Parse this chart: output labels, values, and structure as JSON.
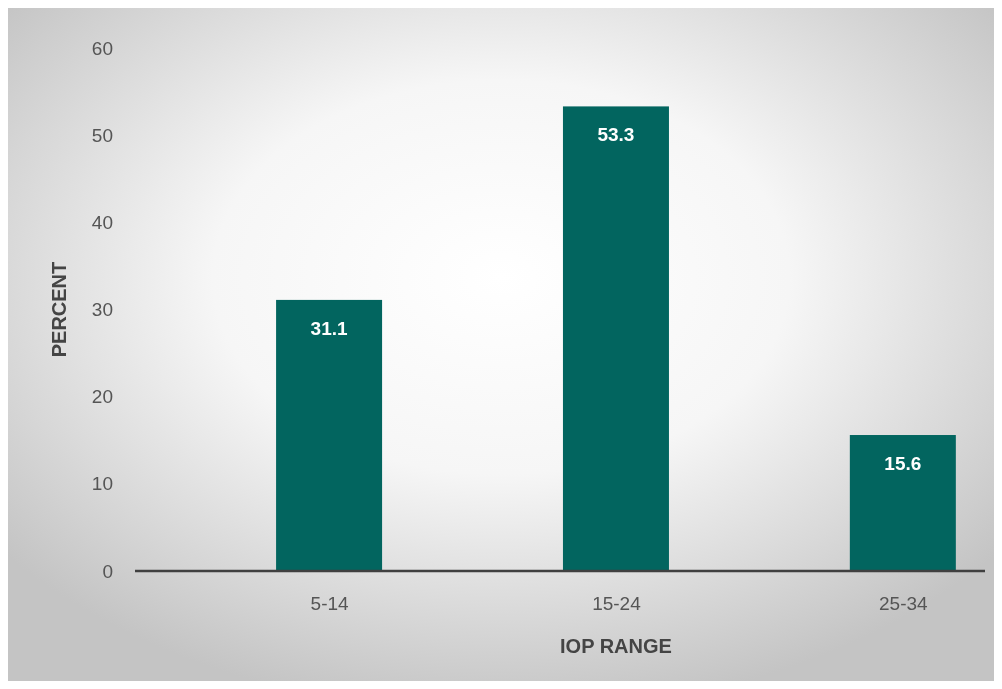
{
  "chart_data": {
    "type": "bar",
    "xlabel": "IOP RANGE",
    "ylabel": "PERCENT",
    "categories": [
      "5-14",
      "15-24",
      "25-34"
    ],
    "values": [
      31.1,
      53.3,
      15.6
    ],
    "color": "#02655f",
    "ylim": [
      0,
      60
    ],
    "yticks": [
      0,
      10,
      20,
      30,
      40,
      50,
      60
    ],
    "grid": false,
    "data_labels": true
  }
}
